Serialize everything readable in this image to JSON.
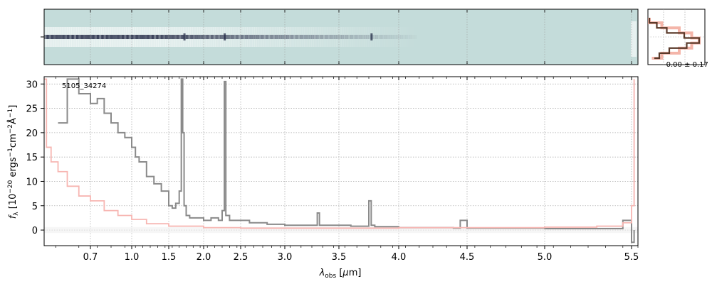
{
  "chart_data": [
    {
      "type": "heatmap",
      "panel": "2d-spectrum",
      "description_colormap": "pale teal background with dark blue trace",
      "trace_row_fraction": 0.5,
      "x_range_um": [
        0.5,
        5.55
      ],
      "colors": {
        "background": "#c4dcda",
        "trace": "#1d2340",
        "bright": "#ffffff"
      }
    },
    {
      "type": "line",
      "panel": "profile",
      "annotation": "-0.00 ± 0.17",
      "series": [
        {
          "name": "data profile",
          "color": "#5a3a2a",
          "values": [
            0.0,
            0.15,
            0.35,
            0.7,
            1.0,
            0.75,
            0.4,
            0.2,
            0.1
          ]
        },
        {
          "name": "model profile",
          "color": "#f4b5a9",
          "values": [
            0.0,
            0.25,
            0.6,
            0.85,
            1.0,
            0.85,
            0.6,
            0.25,
            0.05
          ]
        }
      ]
    },
    {
      "type": "line",
      "panel": "1d-spectrum",
      "title": "5105_34274",
      "xlabel": "λobs [μm]",
      "ylabel": "fλ [10^-20 ergs^-1 cm^-2 Å^-1]",
      "xlim": [
        0.5,
        5.55
      ],
      "ylim": [
        -3.2,
        31.5
      ],
      "x_ticks": [
        0.7,
        1.0,
        1.5,
        2.0,
        2.5,
        3.0,
        3.5,
        4.0,
        4.5,
        5.0,
        5.5
      ],
      "x_tick_labels": [
        "0.7",
        "1.0",
        "1.5",
        "2.0",
        "2.5",
        "3.0",
        "3.5",
        "4.0",
        "4.5",
        "5.0",
        "5.5"
      ],
      "y_ticks": [
        0,
        5,
        10,
        15,
        20,
        25,
        30
      ],
      "y_tick_labels": [
        "0",
        "5",
        "10",
        "15",
        "20",
        "25",
        "30"
      ],
      "grid": true,
      "series": [
        {
          "name": "flux",
          "color": "#8a8a8a",
          "x": [
            0.56,
            0.6,
            0.65,
            0.7,
            0.75,
            0.8,
            0.85,
            0.9,
            0.95,
            1.0,
            1.05,
            1.1,
            1.2,
            1.3,
            1.4,
            1.5,
            1.55,
            1.6,
            1.65,
            1.68,
            1.7,
            1.72,
            1.75,
            1.8,
            1.9,
            2.0,
            2.1,
            2.2,
            2.25,
            2.28,
            2.3,
            2.35,
            2.45,
            2.6,
            2.8,
            3.0,
            3.2,
            3.3,
            3.32,
            3.4,
            3.6,
            3.75,
            3.77,
            3.8,
            4.0,
            4.2,
            4.4,
            4.45,
            4.5,
            4.6,
            4.8,
            5.0,
            5.2,
            5.4,
            5.45,
            5.5,
            5.52
          ],
          "y": [
            22.0,
            31.0,
            28.0,
            26.0,
            27.0,
            24.0,
            22.0,
            20.0,
            19.0,
            17.0,
            15.0,
            14.0,
            11.0,
            9.5,
            8.0,
            5.0,
            4.5,
            5.5,
            8.0,
            31.0,
            20.0,
            5.0,
            3.0,
            2.5,
            2.5,
            2.0,
            2.5,
            2.0,
            4.0,
            30.5,
            3.0,
            2.0,
            2.0,
            1.5,
            1.2,
            1.0,
            1.0,
            3.5,
            1.0,
            1.0,
            0.8,
            6.0,
            1.0,
            0.7,
            0.5,
            0.5,
            0.4,
            2.0,
            0.4,
            0.4,
            0.4,
            0.3,
            0.3,
            0.3,
            2.0,
            -2.5,
            0.0
          ]
        },
        {
          "name": "error",
          "color": "#f7b6b2",
          "x": [
            0.5,
            0.51,
            0.53,
            0.56,
            0.6,
            0.65,
            0.7,
            0.8,
            0.9,
            1.0,
            1.2,
            1.5,
            2.0,
            2.5,
            3.0,
            3.5,
            4.0,
            4.5,
            5.0,
            5.3,
            5.45,
            5.5,
            5.52
          ],
          "y": [
            31.0,
            17.0,
            14.0,
            12.0,
            9.0,
            7.0,
            6.0,
            4.0,
            3.0,
            2.2,
            1.3,
            0.8,
            0.5,
            0.4,
            0.4,
            0.4,
            0.5,
            0.5,
            0.6,
            0.8,
            1.5,
            5.0,
            31.0
          ]
        }
      ]
    }
  ]
}
